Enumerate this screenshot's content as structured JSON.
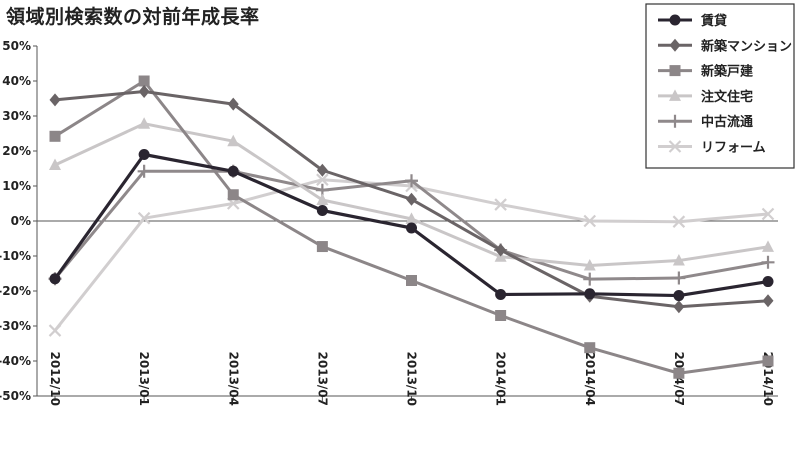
{
  "chart_data": {
    "type": "line",
    "title": "領域別検索数の対前年成長率",
    "xlabel": "",
    "ylabel": "",
    "categories": [
      "2012/10",
      "2013/01",
      "2013/04",
      "2013/07",
      "2013/10",
      "2014/01",
      "2014/04",
      "2014/07",
      "2014/10"
    ],
    "ylim": [
      -50,
      50
    ],
    "yticks": [
      "50%",
      "40%",
      "30%",
      "20%",
      "10%",
      "0%",
      "-10%",
      "-20%",
      "-30%",
      "-40%",
      "-50%"
    ],
    "grid": false,
    "legend_position": "top-right",
    "series": [
      {
        "name": "賃貸",
        "marker": "circle",
        "color": "#2a2530",
        "values": [
          -16.5,
          19,
          14.2,
          3,
          -2,
          -21,
          -20.8,
          -21.3,
          -17.3
        ]
      },
      {
        "name": "新築マンション",
        "marker": "diamond",
        "color": "#6a6466",
        "values": [
          34.6,
          37,
          33.4,
          14.5,
          6.2,
          -8.3,
          -21.5,
          -24.5,
          -22.8
        ]
      },
      {
        "name": "新築戸建",
        "marker": "square",
        "color": "#8c8688",
        "values": [
          24.2,
          40,
          7.5,
          -7.3,
          -17,
          -27,
          -36.2,
          -43.5,
          -40
        ]
      },
      {
        "name": "注文住宅",
        "marker": "triangle",
        "color": "#c9c6c7",
        "values": [
          16,
          27.8,
          22.8,
          6,
          0.6,
          -10.2,
          -12.7,
          -11.3,
          -7.4
        ]
      },
      {
        "name": "中古流通",
        "marker": "plus",
        "color": "#8f898b",
        "values": [
          -16.5,
          14.2,
          14.2,
          8.8,
          11.5,
          -8.3,
          -16.6,
          -16.3,
          -11.8
        ]
      },
      {
        "name": "リフォーム",
        "marker": "x",
        "color": "#d1cecf",
        "values": [
          -31.3,
          0.8,
          5,
          11.8,
          10,
          4.7,
          0,
          -0.2,
          2
        ]
      }
    ]
  }
}
